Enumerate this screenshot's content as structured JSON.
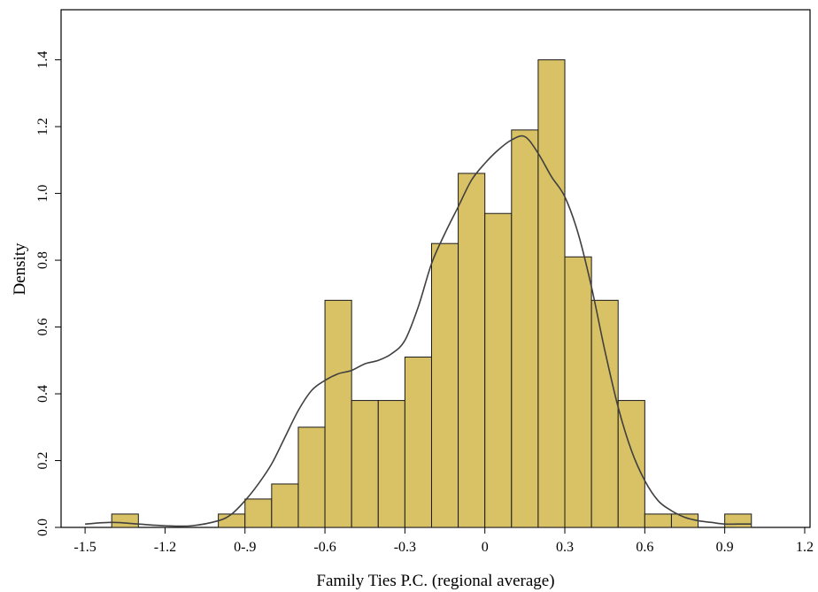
{
  "chart_data": {
    "type": "bar",
    "subtype": "histogram-with-density",
    "xlabel": "Family Ties P.C. (regional average)",
    "ylabel": "Density",
    "xlim": [
      -1.59,
      1.22
    ],
    "ylim": [
      0,
      1.55
    ],
    "xticks": [
      -1.5,
      -1.2,
      -0.9,
      -0.6,
      -0.3,
      0,
      0.3,
      0.6,
      0.9,
      1.2
    ],
    "xtick_labels": [
      "-1.5",
      "-1.2",
      "0-.9",
      "-0.6",
      "-0.3",
      "0",
      "0.3",
      "0.6",
      "0.9",
      "1.2"
    ],
    "yticks": [
      0,
      0.2,
      0.4,
      0.6,
      0.8,
      1.0,
      1.2,
      1.4
    ],
    "ytick_labels": [
      "0.0",
      "0.2",
      "0.4",
      "0.6",
      "0.8",
      "1.0",
      "1.2",
      "1.4"
    ],
    "bin_width": 0.1,
    "bins": [
      {
        "x0": -1.4,
        "density": 0.04
      },
      {
        "x0": -1.0,
        "density": 0.04
      },
      {
        "x0": -0.9,
        "density": 0.085
      },
      {
        "x0": -0.8,
        "density": 0.13
      },
      {
        "x0": -0.7,
        "density": 0.3
      },
      {
        "x0": -0.6,
        "density": 0.68
      },
      {
        "x0": -0.5,
        "density": 0.38
      },
      {
        "x0": -0.4,
        "density": 0.38
      },
      {
        "x0": -0.3,
        "density": 0.51
      },
      {
        "x0": -0.2,
        "density": 0.85
      },
      {
        "x0": -0.1,
        "density": 1.06
      },
      {
        "x0": 0.0,
        "density": 0.94
      },
      {
        "x0": 0.1,
        "density": 1.19
      },
      {
        "x0": 0.2,
        "density": 1.4
      },
      {
        "x0": 0.3,
        "density": 0.81
      },
      {
        "x0": 0.4,
        "density": 0.68
      },
      {
        "x0": 0.5,
        "density": 0.38
      },
      {
        "x0": 0.6,
        "density": 0.04
      },
      {
        "x0": 0.7,
        "density": 0.04
      },
      {
        "x0": 0.9,
        "density": 0.04
      }
    ],
    "density_curve": {
      "x": [
        -1.5,
        -1.4,
        -1.3,
        -1.2,
        -1.1,
        -1.0,
        -0.95,
        -0.9,
        -0.85,
        -0.8,
        -0.75,
        -0.7,
        -0.65,
        -0.6,
        -0.55,
        -0.5,
        -0.45,
        -0.4,
        -0.35,
        -0.3,
        -0.25,
        -0.2,
        -0.15,
        -0.1,
        -0.05,
        0.0,
        0.05,
        0.1,
        0.15,
        0.2,
        0.25,
        0.3,
        0.35,
        0.4,
        0.45,
        0.5,
        0.55,
        0.6,
        0.65,
        0.7,
        0.75,
        0.8,
        0.85,
        0.9,
        0.95,
        1.0
      ],
      "y": [
        0.01,
        0.015,
        0.01,
        0.005,
        0.005,
        0.02,
        0.04,
        0.08,
        0.13,
        0.19,
        0.27,
        0.35,
        0.41,
        0.44,
        0.46,
        0.47,
        0.49,
        0.5,
        0.52,
        0.56,
        0.66,
        0.79,
        0.88,
        0.96,
        1.04,
        1.09,
        1.13,
        1.16,
        1.17,
        1.12,
        1.05,
        0.99,
        0.88,
        0.72,
        0.53,
        0.36,
        0.23,
        0.14,
        0.08,
        0.05,
        0.03,
        0.02,
        0.015,
        0.01,
        0.01,
        0.01
      ]
    },
    "colors": {
      "bar_fill": "#d9c266",
      "bar_stroke": "#1a1a1a",
      "curve": "#404040",
      "axis": "#000000"
    },
    "grid": false,
    "legend": "none"
  }
}
